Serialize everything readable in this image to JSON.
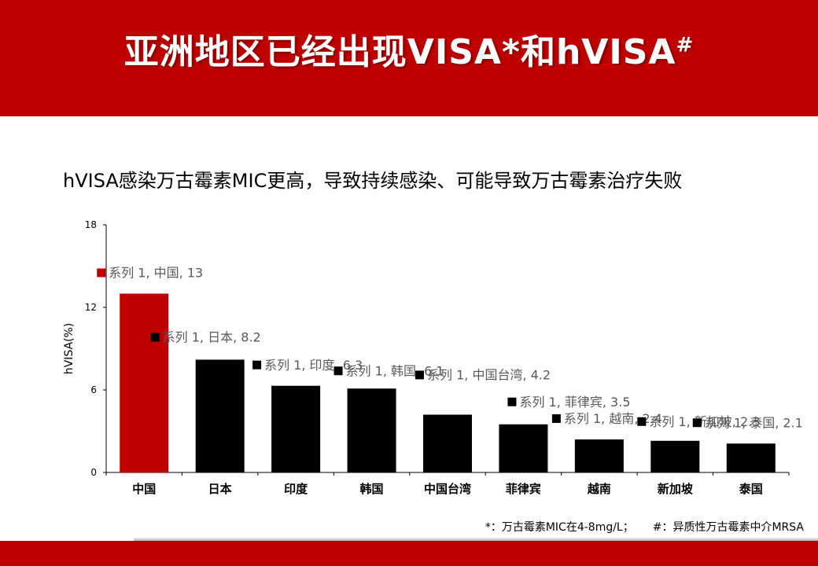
{
  "slide": {
    "title": "亚洲地区已经出现VISA*和hVISA",
    "title_mark": "#",
    "subtitle": "hVISA感染万古霉素MIC更高，导致持续感染、可能导致万古霉素治疗失败",
    "footnote_star": "*：万古霉素MIC在4-8mg/L；",
    "footnote_hash": "#：异质性万古霉素中介MRSA"
  },
  "colors": {
    "brand_red": "#c00000",
    "bar_black": "#000000",
    "label_gray": "#595959"
  },
  "chart_data": {
    "type": "bar",
    "series_name": "系列 1",
    "categories": [
      "中国",
      "日本",
      "印度",
      "韩国",
      "中国台湾",
      "菲律宾",
      "越南",
      "新加坡",
      "泰国"
    ],
    "values": [
      13,
      8.2,
      6.3,
      6.1,
      4.2,
      3.5,
      2.4,
      2.3,
      2.1
    ],
    "bar_colors": [
      "#c00000",
      "#000000",
      "#000000",
      "#000000",
      "#000000",
      "#000000",
      "#000000",
      "#000000",
      "#000000"
    ],
    "data_labels": [
      "系列 1, 中国, 13",
      "系列 1, 日本, 8.2",
      "系列 1, 印度, 6.3",
      "系列 1, 韩国, 6.1",
      "系列 1, 中国台湾, 4.2",
      "系列 1, 菲律宾, 3.5",
      "系列 1, 越南, 2.4",
      "系列 1, 新加坡, 2.3",
      "系列 1, 泰国, 2.1"
    ],
    "xlabel": "",
    "ylabel": "hVISA(%)",
    "ylim": [
      0,
      18
    ],
    "yticks": [
      0,
      6,
      12,
      18
    ],
    "grid": false,
    "legend": "none"
  }
}
